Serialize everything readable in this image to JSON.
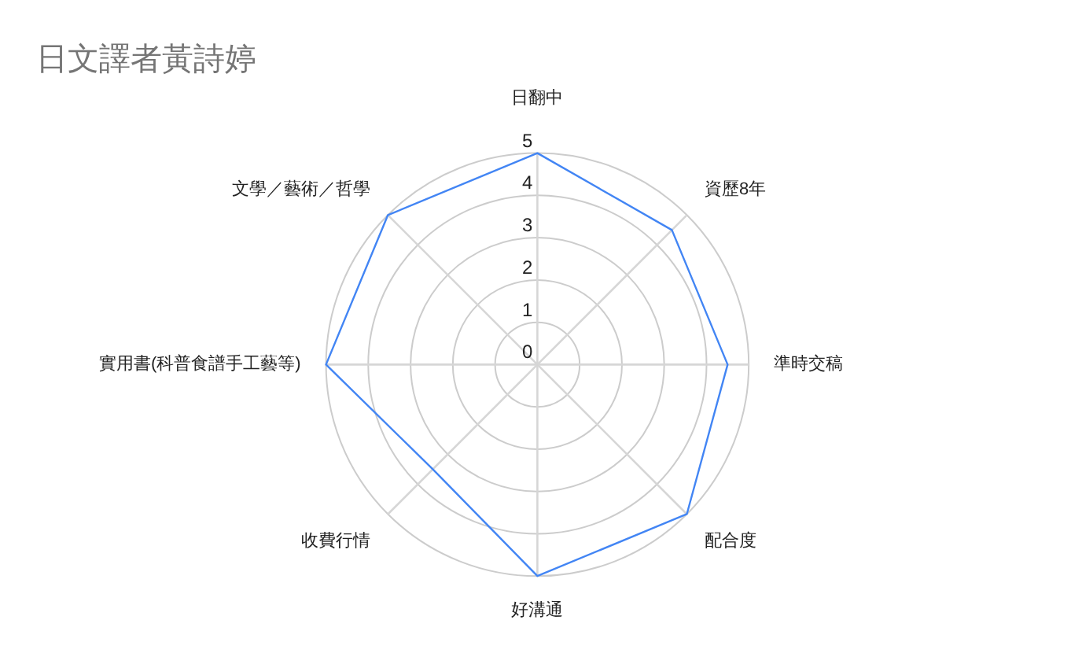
{
  "chart_data": {
    "type": "radar",
    "title": "日文譯者黃詩婷",
    "categories": [
      "日翻中",
      "資歷8年",
      "準時交稿",
      "配合度",
      "好溝通",
      "收費行情",
      "實用書(科普食譜手工藝等)",
      "文學／藝術／哲學"
    ],
    "series": [
      {
        "color": "#4285f4",
        "values": [
          5,
          4.5,
          4.5,
          5,
          5,
          3.5,
          5,
          5
        ]
      }
    ],
    "ylim": [
      0,
      5
    ],
    "yticks": [
      0,
      1,
      2,
      3,
      4,
      5
    ],
    "grid": true
  }
}
